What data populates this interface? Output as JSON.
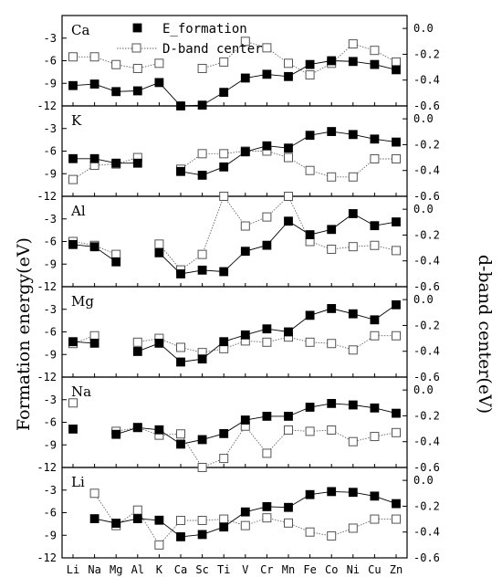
{
  "chart_data": {
    "type": "line",
    "categories": [
      "Li",
      "Na",
      "Mg",
      "Al",
      "K",
      "Ca",
      "Sc",
      "Ti",
      "V",
      "Cr",
      "Mn",
      "Fe",
      "Co",
      "Ni",
      "Cu",
      "Zn"
    ],
    "y_left_label": "Formation energy(eV)",
    "y_right_label": "d-band center(eV)",
    "y_left_range": [
      -12,
      0
    ],
    "y_left_ticks": [
      -3,
      -6,
      -9,
      -12
    ],
    "y_right_range": [
      -0.6,
      0.1
    ],
    "y_right_ticks": [
      0.0,
      -0.2,
      -0.4,
      -0.6
    ],
    "y_right_tick_labels": [
      "0.0",
      "-0.2",
      "-0.4",
      "-0.6"
    ],
    "legend": {
      "entries": [
        "E_formation",
        "D-band center"
      ],
      "placement": "top-center"
    },
    "grid": false,
    "panels": [
      {
        "label": "Ca",
        "E_formation": [
          -9.3,
          -9.1,
          -10.1,
          -10.0,
          -8.9,
          -12.0,
          -11.9,
          -10.2,
          -8.3,
          -7.8,
          -8.1,
          -6.5,
          -6.0,
          -6.1,
          -6.5,
          -7.2
        ],
        "d_band_center": [
          -0.22,
          -0.22,
          -0.28,
          -0.31,
          -0.27,
          null,
          -0.31,
          -0.26,
          -0.1,
          -0.15,
          -0.27,
          -0.36,
          -0.27,
          -0.12,
          -0.17,
          -0.26
        ]
      },
      {
        "label": "K",
        "E_formation": [
          -7.0,
          -7.0,
          -7.6,
          -7.6,
          null,
          -8.7,
          -9.2,
          -8.1,
          -6.1,
          -5.3,
          -5.6,
          -3.9,
          -3.4,
          -3.8,
          -4.4,
          -4.8
        ],
        "d_band_center": [
          -0.47,
          -0.36,
          -0.35,
          -0.3,
          null,
          -0.39,
          -0.27,
          -0.27,
          -0.25,
          -0.25,
          -0.3,
          -0.4,
          -0.45,
          -0.45,
          -0.31,
          -0.31
        ]
      },
      {
        "label": "Al",
        "E_formation": [
          -6.4,
          -6.7,
          -8.7,
          null,
          -7.5,
          -10.3,
          -9.8,
          -10.0,
          -7.3,
          -6.5,
          -3.3,
          -5.1,
          -4.4,
          -2.3,
          -3.9,
          -3.4
        ],
        "d_band_center": [
          -0.25,
          -0.28,
          -0.35,
          null,
          -0.27,
          -0.47,
          -0.35,
          0.1,
          -0.13,
          -0.06,
          0.1,
          -0.25,
          -0.31,
          -0.29,
          -0.28,
          -0.32
        ]
      },
      {
        "label": "Mg",
        "E_formation": [
          -7.3,
          -7.5,
          null,
          -8.6,
          -7.5,
          -10.0,
          -9.6,
          -7.3,
          -6.4,
          -5.6,
          -6.0,
          -3.8,
          -2.9,
          -3.6,
          -4.4,
          -2.4
        ],
        "d_band_center": [
          -0.34,
          -0.28,
          null,
          -0.33,
          -0.3,
          -0.37,
          -0.41,
          -0.38,
          -0.32,
          -0.33,
          -0.29,
          -0.33,
          -0.34,
          -0.39,
          -0.28,
          -0.28
        ]
      },
      {
        "label": "Na",
        "E_formation": [
          -6.9,
          null,
          -7.6,
          -6.7,
          -7.0,
          -8.9,
          -8.3,
          -7.5,
          -5.7,
          -5.2,
          -5.2,
          -4.0,
          -3.5,
          -3.7,
          -4.1,
          -4.8
        ],
        "d_band_center": [
          -0.1,
          null,
          -0.32,
          -0.29,
          -0.35,
          -0.34,
          -0.63,
          -0.53,
          -0.28,
          -0.49,
          -0.31,
          -0.32,
          -0.31,
          -0.4,
          -0.36,
          -0.33
        ]
      },
      {
        "label": "Li",
        "E_formation": [
          null,
          -6.8,
          -7.4,
          -6.8,
          -7.0,
          -9.2,
          -8.9,
          -7.9,
          -5.9,
          -5.2,
          -5.3,
          -3.6,
          -3.2,
          -3.3,
          -3.8,
          -4.8
        ],
        "d_band_center": [
          null,
          -0.1,
          -0.35,
          -0.23,
          -0.5,
          -0.31,
          -0.31,
          -0.3,
          -0.35,
          -0.29,
          -0.33,
          -0.4,
          -0.43,
          -0.37,
          -0.3,
          -0.3
        ]
      }
    ]
  }
}
